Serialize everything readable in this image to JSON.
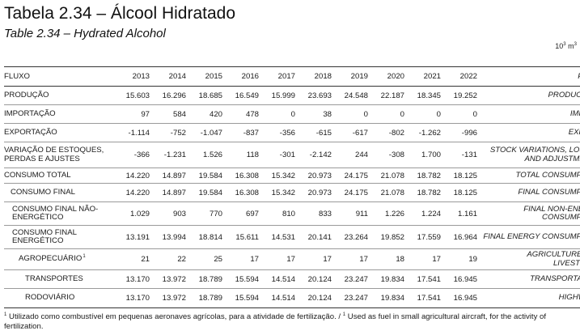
{
  "title_pt": "Tabela 2.34 – Álcool Hidratado",
  "title_en": "Table 2.34 – Hydrated Alcohol",
  "unit": {
    "base": "10",
    "exp": "3",
    "suffix": "m",
    "exp2": "3"
  },
  "header": {
    "flow_pt": "FLUXO",
    "flow_en": "FLOW",
    "years": [
      "2013",
      "2014",
      "2015",
      "2016",
      "2017",
      "2018",
      "2019",
      "2020",
      "2021",
      "2022"
    ]
  },
  "rows": [
    {
      "pt": "PRODUÇÃO",
      "en": "PRODUCTION",
      "values": [
        "15.603",
        "16.296",
        "18.685",
        "16.549",
        "15.999",
        "23.693",
        "24.548",
        "22.187",
        "18.345",
        "19.252"
      ]
    },
    {
      "pt": "IMPORTAÇÃO",
      "en": "IMPORT",
      "values": [
        "97",
        "584",
        "420",
        "478",
        "0",
        "38",
        "0",
        "0",
        "0",
        "0"
      ]
    },
    {
      "pt": "EXPORTAÇÃO",
      "en": "EXPORT",
      "values": [
        "-1.114",
        "-752",
        "-1.047",
        "-837",
        "-356",
        "-615",
        "-617",
        "-802",
        "-1.262",
        "-996"
      ]
    },
    {
      "pt": "VARIAÇÃO DE ESTOQUES, PERDAS E AJUSTES",
      "en": "STOCK VARIATIONS, LOSSES AND ADJUSTMENTS",
      "values": [
        "-366",
        "-1.231",
        "1.526",
        "118",
        "-301",
        "-2.142",
        "244",
        "-308",
        "1.700",
        "-131"
      ]
    },
    {
      "pt": "CONSUMO TOTAL",
      "en": "TOTAL CONSUMPTION",
      "values": [
        "14.220",
        "14.897",
        "19.584",
        "16.308",
        "15.342",
        "20.973",
        "24.175",
        "21.078",
        "18.782",
        "18.125"
      ]
    },
    {
      "pt": "CONSUMO FINAL",
      "en": "FINAL CONSUMPTION",
      "values": [
        "14.220",
        "14.897",
        "19.584",
        "16.308",
        "15.342",
        "20.973",
        "24.175",
        "21.078",
        "18.782",
        "18.125"
      ]
    },
    {
      "pt": "CONSUMO FINAL NÃO-ENERGÉTICO",
      "en": "FINAL NON-ENERGY CONSUMPTION",
      "values": [
        "1.029",
        "903",
        "770",
        "697",
        "810",
        "833",
        "911",
        "1.226",
        "1.224",
        "1.161"
      ]
    },
    {
      "pt": "CONSUMO FINAL ENERGÉTICO",
      "en": "FINAL ENERGY CONSUMPTION",
      "values": [
        "13.191",
        "13.994",
        "18.814",
        "15.611",
        "14.531",
        "20.141",
        "23.264",
        "19.852",
        "17.559",
        "16.964"
      ]
    },
    {
      "pt": "AGROPECUÁRIO",
      "sup": "1",
      "en": "AGRICULTURE AND LIVESTOCK",
      "en_sup": "1",
      "values": [
        "21",
        "22",
        "25",
        "17",
        "17",
        "17",
        "17",
        "18",
        "17",
        "19"
      ]
    },
    {
      "pt": "TRANSPORTES",
      "en": "TRANSPORTATION",
      "values": [
        "13.170",
        "13.972",
        "18.789",
        "15.594",
        "14.514",
        "20.124",
        "23.247",
        "19.834",
        "17.541",
        "16.945"
      ]
    },
    {
      "pt": "RODOVIÁRIO",
      "en": "HIGHWAYS",
      "values": [
        "13.170",
        "13.972",
        "18.789",
        "15.594",
        "14.514",
        "20.124",
        "23.247",
        "19.834",
        "17.541",
        "16.945"
      ]
    }
  ],
  "footnote": {
    "marker": "1",
    "pt": " Utilizado como combustível em pequenas aeronaves agrícolas, para a atividade de fertilização. / ",
    "marker2": "1",
    "en": " Used as fuel in small agricultural aircraft, for the activity of fertilization."
  }
}
